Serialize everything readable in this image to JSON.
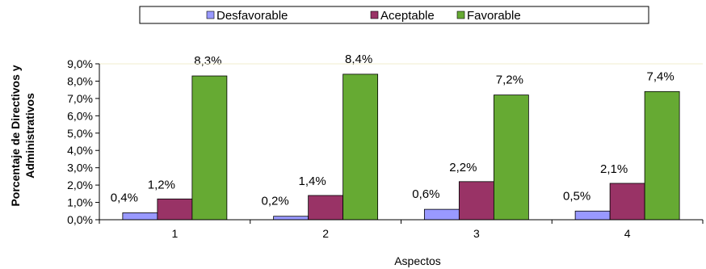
{
  "chart_data": {
    "type": "bar",
    "categories": [
      "1",
      "2",
      "3",
      "4"
    ],
    "series": [
      {
        "name": "Desfavorable",
        "color": "#9999ff",
        "values": [
          0.4,
          0.2,
          0.6,
          0.5
        ],
        "labels": [
          "0,4%",
          "0,2%",
          "0,6%",
          "0,5%"
        ]
      },
      {
        "name": "Aceptable",
        "color": "#993366",
        "values": [
          1.2,
          1.4,
          2.2,
          2.1
        ],
        "labels": [
          "1,2%",
          "1,4%",
          "2,2%",
          "2,1%"
        ]
      },
      {
        "name": "Favorable",
        "color": "#66aa33",
        "values": [
          8.3,
          8.4,
          7.2,
          7.4
        ],
        "labels": [
          "8,3%",
          "8,4%",
          "7,2%",
          "7,4%"
        ]
      }
    ],
    "yticks": [
      "0,0%",
      "1,0%",
      "2,0%",
      "3,0%",
      "4,0%",
      "5,0%",
      "6,0%",
      "7,0%",
      "8,0%",
      "9,0%"
    ],
    "ylim": [
      0,
      9
    ],
    "xlabel": "Aspectos",
    "ylabel_lines": [
      "Porcentaje de Directivos y",
      "Administrativos"
    ],
    "legend_position": "top-center",
    "grid": false
  }
}
